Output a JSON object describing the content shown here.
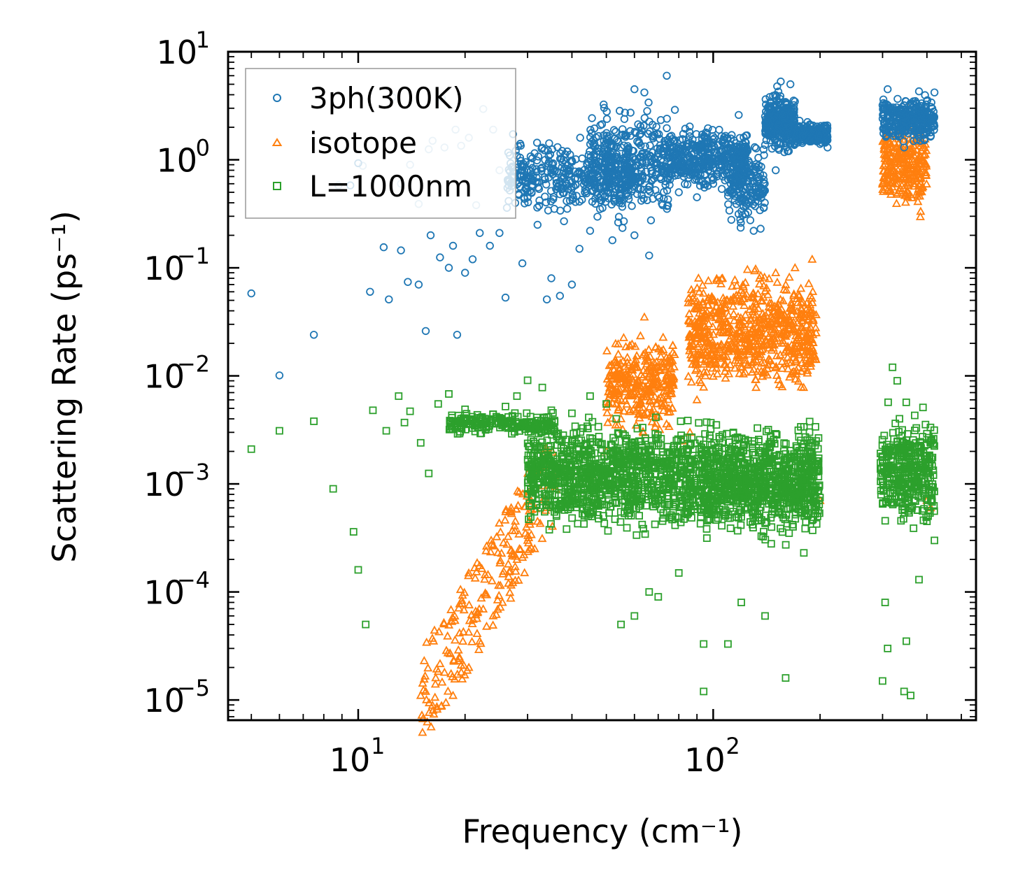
{
  "chart_data": {
    "type": "scatter",
    "xscale": "log",
    "yscale": "log",
    "xlabel": "Frequency (cm⁻¹)",
    "ylabel": "Scattering Rate (ps⁻¹)",
    "xlim": [
      4.3,
      550
    ],
    "ylim": [
      6.5e-06,
      10
    ],
    "x_ticks": [
      {
        "value": 10,
        "base": "10",
        "exp": "1"
      },
      {
        "value": 100,
        "base": "10",
        "exp": "2"
      }
    ],
    "y_ticks": [
      {
        "value": 10,
        "base": "10",
        "exp": "1"
      },
      {
        "value": 1,
        "base": "10",
        "exp": "0"
      },
      {
        "value": 0.1,
        "base": "10",
        "exp": "−1"
      },
      {
        "value": 0.01,
        "base": "10",
        "exp": "−2"
      },
      {
        "value": 0.001,
        "base": "10",
        "exp": "−3"
      },
      {
        "value": 0.0001,
        "base": "10",
        "exp": "−4"
      },
      {
        "value": 1e-05,
        "base": "10",
        "exp": "−5"
      }
    ],
    "legend": {
      "position": "upper-left",
      "entries": [
        "3ph(300K)",
        "isotope",
        "L=1000nm"
      ]
    },
    "series": [
      {
        "name": "3ph(300K)",
        "marker": "circle",
        "color": "#1f77b4",
        "points": [
          [
            5.0,
            0.058
          ],
          [
            6.0,
            0.0101
          ],
          [
            7.5,
            0.024
          ],
          [
            9.5,
            0.58
          ],
          [
            10.0,
            0.93
          ],
          [
            10.8,
            0.06
          ],
          [
            11.8,
            0.155
          ],
          [
            12.2,
            0.051
          ],
          [
            13.2,
            0.145
          ],
          [
            13.8,
            0.074
          ],
          [
            14.8,
            0.07
          ],
          [
            15.5,
            0.026
          ],
          [
            16.0,
            0.2
          ],
          [
            17.0,
            0.125
          ],
          [
            18.0,
            0.1
          ],
          [
            18.5,
            0.16
          ],
          [
            19.0,
            0.024
          ],
          [
            20.0,
            0.09
          ],
          [
            21.0,
            0.12
          ],
          [
            22.0,
            0.21
          ],
          [
            23.5,
            0.16
          ],
          [
            25.0,
            0.21
          ],
          [
            26.0,
            0.053
          ],
          [
            27.5,
            0.7
          ],
          [
            29.0,
            0.11
          ],
          [
            30.0,
            0.45
          ],
          [
            32.0,
            0.25
          ],
          [
            34.0,
            0.051
          ],
          [
            35.0,
            0.08
          ],
          [
            37.0,
            0.055
          ],
          [
            38.0,
            0.27
          ],
          [
            40.0,
            0.07
          ],
          [
            42.0,
            0.15
          ],
          [
            45.0,
            0.22
          ],
          [
            48.0,
            0.35
          ],
          [
            52.0,
            0.18
          ],
          [
            56.0,
            0.27
          ],
          [
            60.0,
            0.2
          ],
          [
            66.0,
            0.13
          ],
          [
            72.0,
            0.38
          ],
          [
            80.0,
            0.5
          ],
          [
            90.0,
            0.45
          ],
          [
            100.0,
            0.6
          ],
          [
            110.0,
            0.5
          ],
          [
            120.0,
            0.42
          ],
          [
            130.0,
            0.22
          ],
          [
            136.0,
            0.23
          ],
          [
            150.0,
            0.8
          ],
          [
            162.0,
            1.2
          ],
          [
            180.0,
            1.6
          ],
          [
            200.0,
            1.4
          ],
          [
            210.0,
            1.3
          ],
          [
            60.0,
            4.5
          ],
          [
            64.0,
            4.2
          ],
          [
            74.0,
            6.0
          ],
          [
            78.0,
            2.9
          ],
          [
            95.0,
            1.6
          ],
          [
            118.0,
            2.6
          ],
          [
            155.0,
            5.3
          ],
          [
            165.0,
            5.0
          ],
          [
            175.0,
            2.3
          ],
          [
            300.0,
            3.2
          ],
          [
            310.0,
            4.5
          ],
          [
            330.0,
            2.5
          ],
          [
            345.0,
            1.3
          ],
          [
            360.0,
            2.5
          ],
          [
            380.0,
            4.3
          ],
          [
            400.0,
            3.5
          ],
          [
            420.0,
            4.2
          ]
        ],
        "bands": [
          {
            "x0": 26.0,
            "x1": 60.0,
            "ylo": 0.28,
            "yhi": 1.9,
            "n": 360
          },
          {
            "x0": 45.0,
            "x1": 75.0,
            "ylo": 0.2,
            "yhi": 4.0,
            "n": 360
          },
          {
            "x0": 75.0,
            "x1": 125.0,
            "ylo": 0.45,
            "yhi": 2.4,
            "n": 420
          },
          {
            "x0": 110.0,
            "x1": 140.0,
            "ylo": 0.22,
            "yhi": 1.6,
            "n": 160
          },
          {
            "x0": 140.0,
            "x1": 170.0,
            "ylo": 1.0,
            "yhi": 5.3,
            "n": 280
          },
          {
            "x0": 170.0,
            "x1": 210.0,
            "ylo": 1.3,
            "yhi": 2.3,
            "n": 220
          },
          {
            "x0": 300.0,
            "x1": 420.0,
            "ylo": 1.3,
            "yhi": 4.4,
            "n": 300
          }
        ],
        "faded_points": [
          [
            8.8,
            0.58
          ],
          [
            10.3,
            0.88
          ],
          [
            12.5,
            3.8
          ],
          [
            13.2,
            0.6
          ],
          [
            14.0,
            0.9
          ],
          [
            14.8,
            0.39
          ],
          [
            15.8,
            1.25
          ],
          [
            16.2,
            1.5
          ],
          [
            17.2,
            3.7
          ],
          [
            17.5,
            1.3
          ],
          [
            18.8,
            1.9
          ],
          [
            19.5,
            1.35
          ],
          [
            20.5,
            1.6
          ],
          [
            21.5,
            0.38
          ],
          [
            22.5,
            2.95
          ],
          [
            24.0,
            1.9
          ],
          [
            25.0,
            0.8
          ]
        ]
      },
      {
        "name": "isotope",
        "marker": "triangle",
        "color": "#ff7f0e",
        "points": [
          [
            15.0,
            1.1e-05
          ],
          [
            15.5,
            1.2e-05
          ],
          [
            16.5,
            1.4e-05
          ],
          [
            17.5,
            1.8e-05
          ],
          [
            18.5,
            1.1e-05
          ],
          [
            19.5,
            2.1e-05
          ],
          [
            20.5,
            2e-05
          ],
          [
            22.0,
            3.5e-05
          ],
          [
            23.0,
            4.8e-05
          ],
          [
            24.0,
            6e-05
          ],
          [
            25.5,
            8e-05
          ],
          [
            26.5,
            0.00012
          ],
          [
            28.0,
            0.0002
          ],
          [
            30.0,
            0.0003
          ],
          [
            32.0,
            0.00045
          ],
          [
            34.0,
            0.0006
          ],
          [
            36.0,
            0.0009
          ],
          [
            40.0,
            0.0008
          ],
          [
            45.0,
            0.0012
          ],
          [
            50.0,
            0.002
          ],
          [
            55.0,
            0.004
          ],
          [
            60.0,
            0.012
          ],
          [
            64.0,
            0.035
          ],
          [
            68.0,
            0.012
          ],
          [
            75.0,
            0.005
          ],
          [
            82.0,
            0.0025
          ],
          [
            86.0,
            0.003
          ],
          [
            90.0,
            0.006
          ],
          [
            95.0,
            0.01
          ],
          [
            100.0,
            0.018
          ],
          [
            110.0,
            0.025
          ],
          [
            120.0,
            0.05
          ],
          [
            135.0,
            0.08
          ],
          [
            150.0,
            0.09
          ],
          [
            170.0,
            0.1
          ],
          [
            190.0,
            0.12
          ],
          [
            195.0,
            0.025
          ],
          [
            200.0,
            0.0007
          ],
          [
            300.0,
            0.6
          ],
          [
            320.0,
            0.8
          ],
          [
            340.0,
            1.0
          ],
          [
            360.0,
            3.3
          ],
          [
            380.0,
            0.5
          ],
          [
            400.0,
            0.0007
          ],
          [
            410.0,
            0.0006
          ]
        ],
        "bands": [
          {
            "x0": 15.0,
            "x1": 36.0,
            "ylo": 1e-05,
            "yhi": 0.0012,
            "n": 220,
            "slope": true
          },
          {
            "x0": 50.0,
            "x1": 78.0,
            "ylo": 0.0025,
            "yhi": 0.03,
            "n": 320
          },
          {
            "x0": 85.0,
            "x1": 195.0,
            "ylo": 0.005,
            "yhi": 0.12,
            "n": 720
          },
          {
            "x0": 300.0,
            "x1": 400.0,
            "ylo": 0.25,
            "yhi": 3.3,
            "n": 260
          }
        ]
      },
      {
        "name": "L=1000nm",
        "marker": "square",
        "color": "#2ca02c",
        "points": [
          [
            5.0,
            0.0021
          ],
          [
            6.0,
            0.0031
          ],
          [
            7.5,
            0.0038
          ],
          [
            8.5,
            0.0009
          ],
          [
            9.7,
            0.00036
          ],
          [
            10.0,
            0.00016
          ],
          [
            10.5,
            5e-05
          ],
          [
            11.0,
            0.0048
          ],
          [
            12.0,
            0.0031
          ],
          [
            13.0,
            0.0065
          ],
          [
            13.5,
            0.0037
          ],
          [
            14.0,
            0.0047
          ],
          [
            15.0,
            0.0024
          ],
          [
            15.8,
            0.00125
          ],
          [
            16.8,
            0.0055
          ],
          [
            18.0,
            0.0068
          ],
          [
            20.0,
            0.0049
          ],
          [
            22.0,
            0.0041
          ],
          [
            24.0,
            0.0044
          ],
          [
            26.0,
            0.0052
          ],
          [
            28.0,
            0.0065
          ],
          [
            30.0,
            0.0091
          ],
          [
            33.0,
            0.0078
          ],
          [
            35.0,
            0.0048
          ],
          [
            40.0,
            0.0045
          ],
          [
            45.0,
            0.0065
          ],
          [
            50.0,
            0.0055
          ],
          [
            55.0,
            5e-05
          ],
          [
            60.0,
            6e-05
          ],
          [
            66.0,
            0.0001
          ],
          [
            70.0,
            9e-05
          ],
          [
            80.0,
            0.00015
          ],
          [
            94.0,
            3.3e-05
          ],
          [
            94.0,
            1.2e-05
          ],
          [
            110.0,
            3.3e-05
          ],
          [
            120.0,
            8e-05
          ],
          [
            140.0,
            6e-05
          ],
          [
            160.0,
            1.6e-05
          ],
          [
            180.0,
            0.00023
          ],
          [
            300.0,
            1.5e-05
          ],
          [
            305.0,
            8e-05
          ],
          [
            310.0,
            3e-05
          ],
          [
            320.0,
            0.012
          ],
          [
            330.0,
            0.009
          ],
          [
            345.0,
            1.2e-05
          ],
          [
            350.0,
            3.5e-05
          ],
          [
            360.0,
            1.1e-05
          ],
          [
            380.0,
            0.00013
          ],
          [
            390.0,
            0.0051
          ],
          [
            400.0,
            0.00045
          ],
          [
            410.0,
            0.0007
          ],
          [
            420.0,
            0.0003
          ]
        ],
        "bands": [
          {
            "x0": 18.0,
            "x1": 36.0,
            "ylo": 0.0027,
            "yhi": 0.0048,
            "n": 200
          },
          {
            "x0": 30.0,
            "x1": 95.0,
            "ylo": 0.00028,
            "yhi": 0.005,
            "n": 1100
          },
          {
            "x0": 95.0,
            "x1": 200.0,
            "ylo": 0.00025,
            "yhi": 0.0045,
            "n": 900
          },
          {
            "x0": 295.0,
            "x1": 420.0,
            "ylo": 0.0003,
            "yhi": 0.006,
            "n": 360
          }
        ]
      }
    ]
  }
}
